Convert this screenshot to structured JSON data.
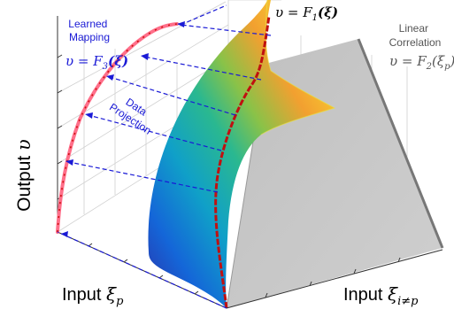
{
  "labels": {
    "output_axis": "Output",
    "output_var": "υ",
    "input_p": "Input",
    "input_p_var": "ξ",
    "input_p_sub": "p",
    "input_other": "Input",
    "input_other_var": "ξ",
    "input_other_sub": "i≠p",
    "learned_line1": "Learned",
    "learned_line2": "Mapping",
    "f3_lhs": "υ = F",
    "f3_sub": "3",
    "f3_arg": "(ξ)",
    "f1_lhs": "υ = F",
    "f1_sub": "1",
    "f1_arg": "(ξ)",
    "linear_line1": "Linear",
    "linear_line2": "Correlation",
    "f2_lhs": "υ = F",
    "f2_sub": "2",
    "f2_arg_open": "(ξ",
    "f2_arg_sub": "p",
    "f2_arg_close": ")",
    "projection_line1": "Data",
    "projection_line2": "Projection"
  },
  "colors": {
    "projection_blue": "#1a1ad6",
    "learned_curve": "#ff6f8a",
    "learned_points": "#cc1010",
    "surface_curve": "#c01010",
    "linear_plane": "#c6c6c6",
    "linear_edge": "#777777"
  }
}
